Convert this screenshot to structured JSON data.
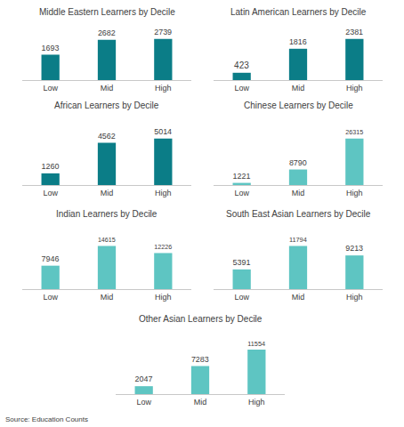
{
  "chart_data": [
    {
      "type": "bar",
      "title": "Middle Eastern Learners by Decile",
      "categories": [
        "Low",
        "Mid",
        "High"
      ],
      "values": [
        1693,
        2682,
        2739
      ],
      "color": "#0b7d87",
      "data_labels": true,
      "tick_labels": "x"
    },
    {
      "type": "bar",
      "title": "Latin American Learners by Decile",
      "categories": [
        "Low",
        "Mid",
        "High"
      ],
      "values": [
        423,
        1816,
        2381
      ],
      "color": "#0b7d87",
      "data_labels": true,
      "tick_labels": "x"
    },
    {
      "type": "bar",
      "title": "African Learners by Decile",
      "categories": [
        "Low",
        "Mid",
        "High"
      ],
      "values": [
        1260,
        4562,
        5014
      ],
      "color": "#0b7d87",
      "data_labels": true,
      "tick_labels": "x"
    },
    {
      "type": "bar",
      "title": "Chinese Learners by Decile",
      "categories": [
        "Low",
        "Mid",
        "High"
      ],
      "values": [
        1221,
        8790,
        26315
      ],
      "color": "#5ec5c2",
      "data_labels": true,
      "tick_labels": "x"
    },
    {
      "type": "bar",
      "title": "Indian Learners by Decile",
      "categories": [
        "Low",
        "Mid",
        "High"
      ],
      "values": [
        7946,
        14615,
        12226
      ],
      "color": "#5ec5c2",
      "data_labels": true,
      "tick_labels": "x"
    },
    {
      "type": "bar",
      "title": "South East Asian Learners by Decile",
      "categories": [
        "Low",
        "Mid",
        "High"
      ],
      "values": [
        5391,
        11794,
        9213
      ],
      "color": "#5ec5c2",
      "data_labels": true,
      "tick_labels": "x"
    },
    {
      "type": "bar",
      "title": "Other Asian Learners by Decile",
      "categories": [
        "Low",
        "Mid",
        "High"
      ],
      "values": [
        2047,
        7283,
        11554
      ],
      "color": "#5ec5c2",
      "data_labels": true,
      "tick_labels": "x"
    }
  ],
  "source": "Source: Education Counts"
}
